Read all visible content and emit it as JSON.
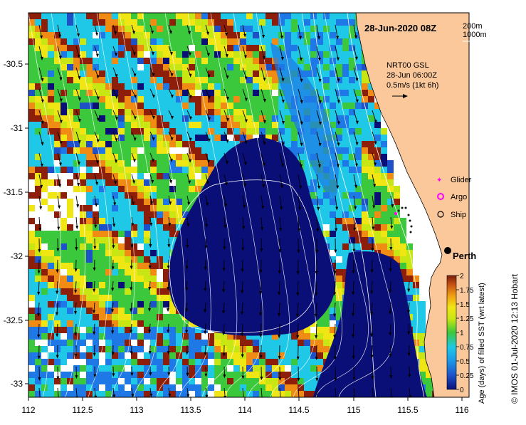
{
  "map": {
    "title": "28-Jun-2020 08Z",
    "depth_legend": [
      "200m",
      "1000m"
    ],
    "current_info": [
      "NRT00 GSL",
      "28-Jun 06:00Z",
      "0.5m/s (1kt 6h)"
    ],
    "x_ticks": [
      "112",
      "112.5",
      "113",
      "113.5",
      "114",
      "114.5",
      "115",
      "115.5",
      "116"
    ],
    "y_ticks": [
      "-30.5",
      "-31",
      "-31.5",
      "-32",
      "-32.5",
      "-33"
    ],
    "city": "Perth",
    "legend": [
      {
        "label": "Glider",
        "symbol": "glider-marker",
        "color": "#ff00ff"
      },
      {
        "label": "Argo",
        "symbol": "argo-marker",
        "color": "#ff00ff"
      },
      {
        "label": "Ship",
        "symbol": "ship-marker",
        "color": "#000000"
      }
    ],
    "colorbar": {
      "ticks": [
        "2",
        "1.75",
        "1.5",
        "1.25",
        "1",
        "0.75",
        "0.5",
        "0.25",
        "0"
      ],
      "label": "Age (days) of filled SST (wrt latest)"
    },
    "credit": "© IMOS 01-Jul-2020 12:13 Hobart",
    "colors": {
      "land": "#fac89b",
      "deep_blue": "#0a0f78",
      "mid_blue": "#1e78e6",
      "cyan": "#1ec8e6",
      "green": "#3cc83c",
      "yellow": "#f0e614",
      "orange": "#f08c14",
      "brown": "#8c1e0a"
    }
  }
}
